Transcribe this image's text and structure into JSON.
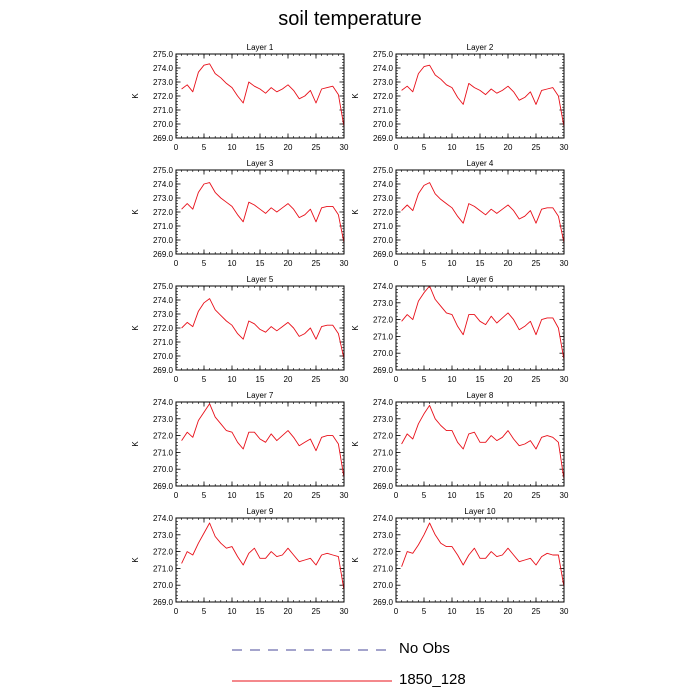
{
  "title": "soil temperature",
  "legend": {
    "items": [
      {
        "label": "No Obs",
        "color": "#4a4a9a",
        "style": "dashed"
      },
      {
        "label": "1850_128",
        "color": "#e8101a",
        "style": "solid"
      }
    ]
  },
  "chart_data": [
    {
      "type": "line",
      "title": "Layer 1",
      "ylabel": "K",
      "xlim": [
        0,
        30
      ],
      "ylim": [
        269.0,
        275.0
      ],
      "xticks": [
        0,
        5,
        10,
        15,
        20,
        25,
        30
      ],
      "yticks": [
        269.0,
        270.0,
        271.0,
        272.0,
        273.0,
        274.0,
        275.0
      ],
      "series": [
        {
          "name": "1850_128",
          "color": "#e8101a",
          "x": [
            1,
            2,
            3,
            4,
            5,
            6,
            7,
            8,
            9,
            10,
            11,
            12,
            13,
            14,
            15,
            16,
            17,
            18,
            19,
            20,
            21,
            22,
            23,
            24,
            25,
            26,
            27,
            28,
            29,
            30
          ],
          "y": [
            272.5,
            272.8,
            272.3,
            273.7,
            274.2,
            274.3,
            273.6,
            273.3,
            272.9,
            272.6,
            272.0,
            271.5,
            273.0,
            272.7,
            272.5,
            272.2,
            272.6,
            272.3,
            272.5,
            272.8,
            272.4,
            271.8,
            272.0,
            272.4,
            271.5,
            272.5,
            272.6,
            272.7,
            272.1,
            269.8
          ]
        }
      ]
    },
    {
      "type": "line",
      "title": "Layer 2",
      "ylabel": "K",
      "xlim": [
        0,
        30
      ],
      "ylim": [
        269.0,
        275.0
      ],
      "xticks": [
        0,
        5,
        10,
        15,
        20,
        25,
        30
      ],
      "yticks": [
        269.0,
        270.0,
        271.0,
        272.0,
        273.0,
        274.0,
        275.0
      ],
      "series": [
        {
          "name": "1850_128",
          "color": "#e8101a",
          "x": [
            1,
            2,
            3,
            4,
            5,
            6,
            7,
            8,
            9,
            10,
            11,
            12,
            13,
            14,
            15,
            16,
            17,
            18,
            19,
            20,
            21,
            22,
            23,
            24,
            25,
            26,
            27,
            28,
            29,
            30
          ],
          "y": [
            272.4,
            272.7,
            272.3,
            273.6,
            274.1,
            274.2,
            273.5,
            273.2,
            272.8,
            272.6,
            271.9,
            271.4,
            272.9,
            272.6,
            272.4,
            272.1,
            272.5,
            272.2,
            272.4,
            272.7,
            272.3,
            271.7,
            271.9,
            272.3,
            271.4,
            272.4,
            272.5,
            272.6,
            272.0,
            269.8
          ]
        }
      ]
    },
    {
      "type": "line",
      "title": "Layer 3",
      "ylabel": "K",
      "xlim": [
        0,
        30
      ],
      "ylim": [
        269.0,
        275.0
      ],
      "xticks": [
        0,
        5,
        10,
        15,
        20,
        25,
        30
      ],
      "yticks": [
        269.0,
        270.0,
        271.0,
        272.0,
        273.0,
        274.0,
        275.0
      ],
      "series": [
        {
          "name": "1850_128",
          "color": "#e8101a",
          "x": [
            1,
            2,
            3,
            4,
            5,
            6,
            7,
            8,
            9,
            10,
            11,
            12,
            13,
            14,
            15,
            16,
            17,
            18,
            19,
            20,
            21,
            22,
            23,
            24,
            25,
            26,
            27,
            28,
            29,
            30
          ],
          "y": [
            272.2,
            272.6,
            272.2,
            273.4,
            274.0,
            274.1,
            273.4,
            273.0,
            272.7,
            272.4,
            271.8,
            271.3,
            272.7,
            272.5,
            272.2,
            271.9,
            272.3,
            272.0,
            272.3,
            272.6,
            272.2,
            271.6,
            271.8,
            272.2,
            271.3,
            272.3,
            272.4,
            272.4,
            271.8,
            269.8
          ]
        }
      ]
    },
    {
      "type": "line",
      "title": "Layer 4",
      "ylabel": "K",
      "xlim": [
        0,
        30
      ],
      "ylim": [
        269.0,
        275.0
      ],
      "xticks": [
        0,
        5,
        10,
        15,
        20,
        25,
        30
      ],
      "yticks": [
        269.0,
        270.0,
        271.0,
        272.0,
        273.0,
        274.0,
        275.0
      ],
      "series": [
        {
          "name": "1850_128",
          "color": "#e8101a",
          "x": [
            1,
            2,
            3,
            4,
            5,
            6,
            7,
            8,
            9,
            10,
            11,
            12,
            13,
            14,
            15,
            16,
            17,
            18,
            19,
            20,
            21,
            22,
            23,
            24,
            25,
            26,
            27,
            28,
            29,
            30
          ],
          "y": [
            272.1,
            272.5,
            272.1,
            273.3,
            273.9,
            274.1,
            273.3,
            272.9,
            272.6,
            272.3,
            271.7,
            271.2,
            272.6,
            272.4,
            272.1,
            271.8,
            272.2,
            271.9,
            272.2,
            272.5,
            272.1,
            271.5,
            271.7,
            272.1,
            271.2,
            272.2,
            272.3,
            272.3,
            271.7,
            269.8
          ]
        }
      ]
    },
    {
      "type": "line",
      "title": "Layer 5",
      "ylabel": "K",
      "xlim": [
        0,
        30
      ],
      "ylim": [
        269.0,
        275.0
      ],
      "xticks": [
        0,
        5,
        10,
        15,
        20,
        25,
        30
      ],
      "yticks": [
        269.0,
        270.0,
        271.0,
        272.0,
        273.0,
        274.0,
        275.0
      ],
      "series": [
        {
          "name": "1850_128",
          "color": "#e8101a",
          "x": [
            1,
            2,
            3,
            4,
            5,
            6,
            7,
            8,
            9,
            10,
            11,
            12,
            13,
            14,
            15,
            16,
            17,
            18,
            19,
            20,
            21,
            22,
            23,
            24,
            25,
            26,
            27,
            28,
            29,
            30
          ],
          "y": [
            272.0,
            272.4,
            272.1,
            273.2,
            273.8,
            274.1,
            273.3,
            272.9,
            272.5,
            272.2,
            271.6,
            271.2,
            272.5,
            272.3,
            271.9,
            271.7,
            272.1,
            271.8,
            272.1,
            272.4,
            272.0,
            271.4,
            271.6,
            272.0,
            271.2,
            272.1,
            272.2,
            272.2,
            271.6,
            269.8
          ]
        }
      ]
    },
    {
      "type": "line",
      "title": "Layer 6",
      "ylabel": "K",
      "xlim": [
        0,
        30
      ],
      "ylim": [
        269.0,
        274.0
      ],
      "xticks": [
        0,
        5,
        10,
        15,
        20,
        25,
        30
      ],
      "yticks": [
        269.0,
        270.0,
        271.0,
        272.0,
        273.0,
        274.0
      ],
      "series": [
        {
          "name": "1850_128",
          "color": "#e8101a",
          "x": [
            1,
            2,
            3,
            4,
            5,
            6,
            7,
            8,
            9,
            10,
            11,
            12,
            13,
            14,
            15,
            16,
            17,
            18,
            19,
            20,
            21,
            22,
            23,
            24,
            25,
            26,
            27,
            28,
            29,
            30
          ],
          "y": [
            271.9,
            272.3,
            272.0,
            273.1,
            273.6,
            274.0,
            273.2,
            272.8,
            272.4,
            272.3,
            271.6,
            271.1,
            272.3,
            272.3,
            271.9,
            271.7,
            272.2,
            271.8,
            272.1,
            272.4,
            272.0,
            271.4,
            271.6,
            271.9,
            271.1,
            272.0,
            272.1,
            272.1,
            271.5,
            269.6
          ]
        }
      ]
    },
    {
      "type": "line",
      "title": "Layer 7",
      "ylabel": "K",
      "xlim": [
        0,
        30
      ],
      "ylim": [
        269.0,
        274.0
      ],
      "xticks": [
        0,
        5,
        10,
        15,
        20,
        25,
        30
      ],
      "yticks": [
        269.0,
        270.0,
        271.0,
        272.0,
        273.0,
        274.0
      ],
      "series": [
        {
          "name": "1850_128",
          "color": "#e8101a",
          "x": [
            1,
            2,
            3,
            4,
            5,
            6,
            7,
            8,
            9,
            10,
            11,
            12,
            13,
            14,
            15,
            16,
            17,
            18,
            19,
            20,
            21,
            22,
            23,
            24,
            25,
            26,
            27,
            28,
            29,
            30
          ],
          "y": [
            271.7,
            272.2,
            271.9,
            272.9,
            273.4,
            273.9,
            273.1,
            272.7,
            272.3,
            272.2,
            271.6,
            271.2,
            272.2,
            272.2,
            271.8,
            271.6,
            272.1,
            271.7,
            272.0,
            272.3,
            271.9,
            271.4,
            271.6,
            271.8,
            271.1,
            271.9,
            272.0,
            272.0,
            271.5,
            269.5
          ]
        }
      ]
    },
    {
      "type": "line",
      "title": "Layer 8",
      "ylabel": "K",
      "xlim": [
        0,
        30
      ],
      "ylim": [
        269.0,
        274.0
      ],
      "xticks": [
        0,
        5,
        10,
        15,
        20,
        25,
        30
      ],
      "yticks": [
        269.0,
        270.0,
        271.0,
        272.0,
        273.0,
        274.0
      ],
      "series": [
        {
          "name": "1850_128",
          "color": "#e8101a",
          "x": [
            1,
            2,
            3,
            4,
            5,
            6,
            7,
            8,
            9,
            10,
            11,
            12,
            13,
            14,
            15,
            16,
            17,
            18,
            19,
            20,
            21,
            22,
            23,
            24,
            25,
            26,
            27,
            28,
            29,
            30
          ],
          "y": [
            271.5,
            272.1,
            271.8,
            272.7,
            273.3,
            273.8,
            273.0,
            272.6,
            272.3,
            272.3,
            271.6,
            271.2,
            272.1,
            272.2,
            271.6,
            271.6,
            272.0,
            271.7,
            271.9,
            272.3,
            271.8,
            271.4,
            271.5,
            271.7,
            271.2,
            271.9,
            272.0,
            271.9,
            271.6,
            269.4
          ]
        }
      ]
    },
    {
      "type": "line",
      "title": "Layer 9",
      "ylabel": "K",
      "xlim": [
        0,
        30
      ],
      "ylim": [
        269.0,
        274.0
      ],
      "xticks": [
        0,
        5,
        10,
        15,
        20,
        25,
        30
      ],
      "yticks": [
        269.0,
        270.0,
        271.0,
        272.0,
        273.0,
        274.0
      ],
      "series": [
        {
          "name": "1850_128",
          "color": "#e8101a",
          "x": [
            1,
            2,
            3,
            4,
            5,
            6,
            7,
            8,
            9,
            10,
            11,
            12,
            13,
            14,
            15,
            16,
            17,
            18,
            19,
            20,
            21,
            22,
            23,
            24,
            25,
            26,
            27,
            28,
            29,
            30
          ],
          "y": [
            271.3,
            272.0,
            271.8,
            272.5,
            273.1,
            273.7,
            272.9,
            272.5,
            272.2,
            272.3,
            271.7,
            271.2,
            271.9,
            272.2,
            271.6,
            271.6,
            272.0,
            271.7,
            271.8,
            272.2,
            271.8,
            271.4,
            271.5,
            271.6,
            271.2,
            271.8,
            271.9,
            271.8,
            271.7,
            269.7
          ]
        }
      ]
    },
    {
      "type": "line",
      "title": "Layer 10",
      "ylabel": "K",
      "xlim": [
        0,
        30
      ],
      "ylim": [
        269.0,
        274.0
      ],
      "xticks": [
        0,
        5,
        10,
        15,
        20,
        25,
        30
      ],
      "yticks": [
        269.0,
        270.0,
        271.0,
        272.0,
        273.0,
        274.0
      ],
      "series": [
        {
          "name": "1850_128",
          "color": "#e8101a",
          "x": [
            1,
            2,
            3,
            4,
            5,
            6,
            7,
            8,
            9,
            10,
            11,
            12,
            13,
            14,
            15,
            16,
            17,
            18,
            19,
            20,
            21,
            22,
            23,
            24,
            25,
            26,
            27,
            28,
            29,
            30
          ],
          "y": [
            271.1,
            272.0,
            271.9,
            272.4,
            273.0,
            273.7,
            273.0,
            272.5,
            272.3,
            272.3,
            271.8,
            271.2,
            271.8,
            272.2,
            271.6,
            271.6,
            272.0,
            271.7,
            271.8,
            272.2,
            271.8,
            271.4,
            271.5,
            271.6,
            271.2,
            271.7,
            271.9,
            271.8,
            271.8,
            269.9
          ]
        }
      ]
    }
  ]
}
